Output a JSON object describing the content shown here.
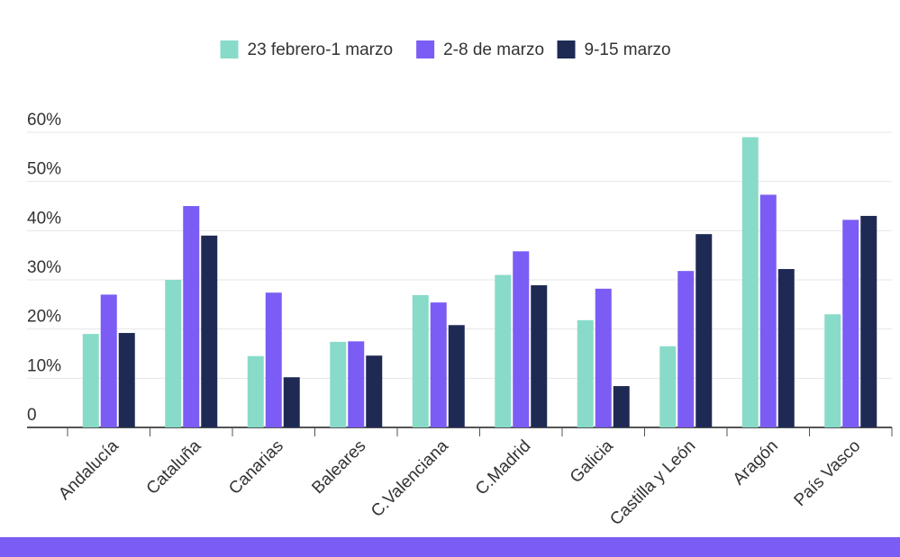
{
  "chart_data": {
    "type": "bar",
    "categories": [
      "Andalucía",
      "Cataluña",
      "Canarias",
      "Baleares",
      "C.Valenciana",
      "C.Madrid",
      "Galicia",
      "Castilla y León",
      "Aragón",
      "País Vasco"
    ],
    "series": [
      {
        "name": "23 febrero-1 marzo",
        "color": "#88dbc8",
        "values": [
          19,
          30,
          14.5,
          17.4,
          26.9,
          31,
          21.8,
          16.5,
          59,
          23
        ]
      },
      {
        "name": "2-8 de marzo",
        "color": "#7b5cf5",
        "values": [
          27,
          45,
          27.4,
          17.5,
          25.4,
          35.8,
          28.2,
          31.8,
          47.3,
          42.2
        ]
      },
      {
        "name": "9-15 marzo",
        "color": "#1f2a54",
        "values": [
          19.2,
          39,
          10.2,
          14.6,
          20.8,
          28.9,
          8.4,
          39.3,
          32.2,
          43
        ]
      }
    ],
    "ylim": [
      0,
      60
    ],
    "yticks": [
      0,
      {
        "value": 10,
        "label": "10%"
      },
      {
        "value": 20,
        "label": "20%"
      },
      {
        "value": 30,
        "label": "30%"
      },
      {
        "value": 40,
        "label": "40%"
      },
      {
        "value": 50,
        "label": "50%"
      },
      {
        "value": 60,
        "label": "60%"
      }
    ],
    "grid": true,
    "legend": "top"
  }
}
